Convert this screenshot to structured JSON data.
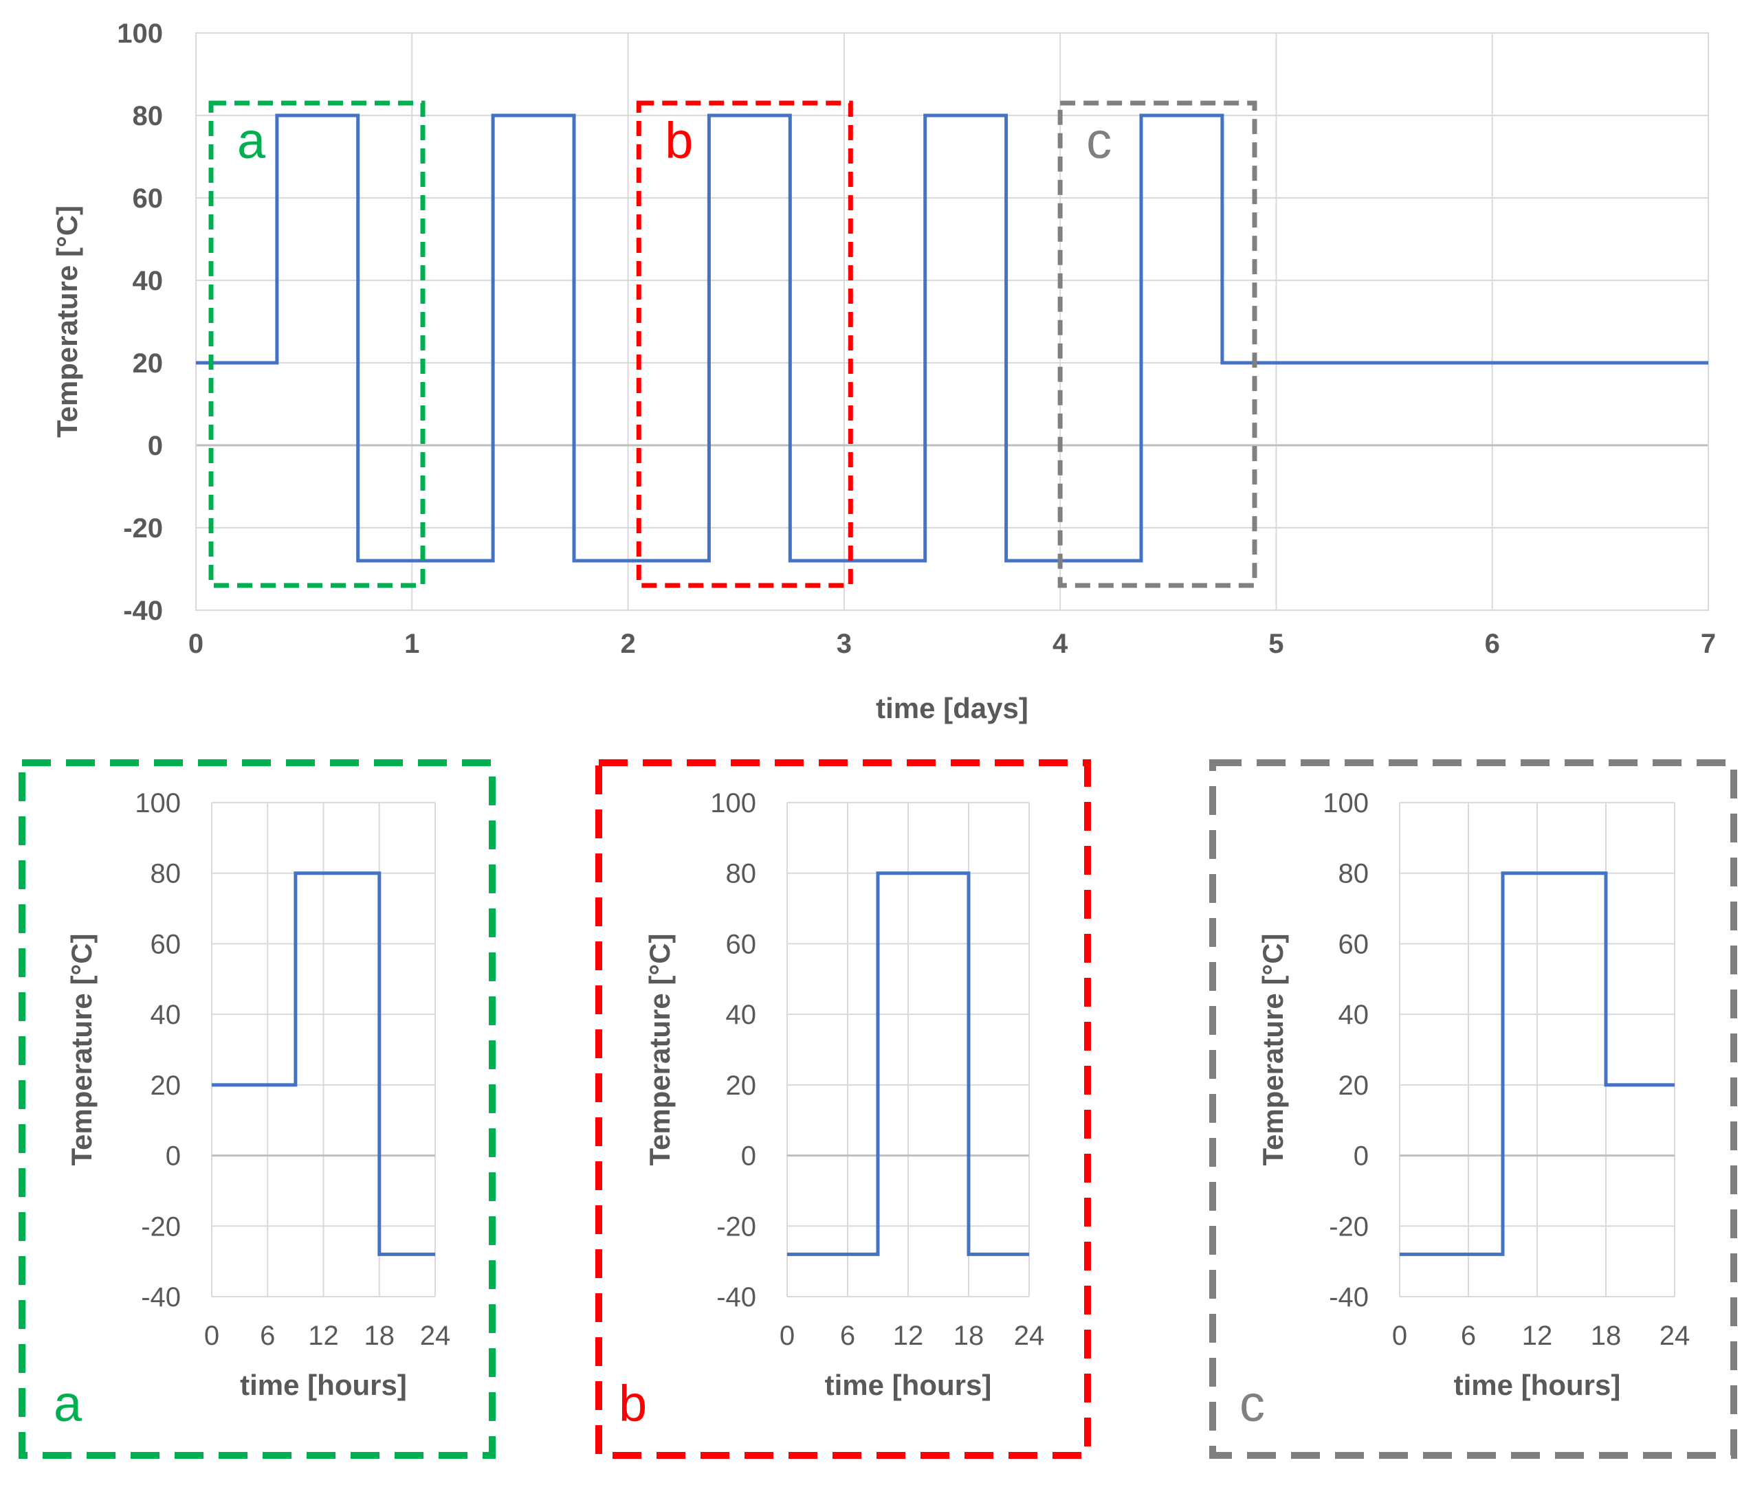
{
  "chart_data": [
    {
      "id": "main",
      "type": "line",
      "title": "",
      "xlabel": "time [days]",
      "ylabel": "Temperature [°C]",
      "xlim": [
        0,
        7
      ],
      "ylim": [
        -40,
        100
      ],
      "xticks": [
        0,
        1,
        2,
        3,
        4,
        5,
        6,
        7
      ],
      "yticks": [
        -40,
        -20,
        0,
        20,
        40,
        60,
        80,
        100
      ],
      "grid": true,
      "step": true,
      "series": [
        {
          "color": "#4472C4",
          "x": [
            0,
            0.375,
            0.375,
            0.75,
            0.75,
            1.375,
            1.375,
            1.75,
            1.75,
            2.375,
            2.375,
            2.75,
            2.75,
            3.375,
            3.375,
            3.75,
            3.75,
            4.375,
            4.375,
            4.75,
            4.75,
            7
          ],
          "y": [
            20,
            20,
            80,
            80,
            -28,
            -28,
            80,
            80,
            -28,
            -28,
            80,
            80,
            -28,
            -28,
            80,
            80,
            -28,
            -28,
            80,
            80,
            20,
            20
          ]
        }
      ],
      "highlights": [
        {
          "label": "a",
          "color": "#00B050",
          "x": [
            0.07,
            1.05
          ],
          "y": [
            -34,
            83
          ]
        },
        {
          "label": "b",
          "color": "#FF0000",
          "x": [
            2.05,
            3.03
          ],
          "y": [
            -34,
            83
          ]
        },
        {
          "label": "c",
          "color": "#808080",
          "x": [
            4.0,
            4.9
          ],
          "y": [
            -34,
            83
          ]
        }
      ]
    },
    {
      "id": "a",
      "type": "line",
      "panel_label": "a",
      "frame_color": "#00B050",
      "xlabel": "time [hours]",
      "ylabel": "Temperature [°C]",
      "xlim": [
        0,
        24
      ],
      "ylim": [
        -40,
        100
      ],
      "xticks": [
        0,
        6,
        12,
        18,
        24
      ],
      "yticks": [
        -40,
        -20,
        0,
        20,
        40,
        60,
        80,
        100
      ],
      "grid": true,
      "series": [
        {
          "color": "#4472C4",
          "x": [
            0,
            9,
            9,
            18,
            18,
            24
          ],
          "y": [
            20,
            20,
            80,
            80,
            -28,
            -28
          ]
        }
      ]
    },
    {
      "id": "b",
      "type": "line",
      "panel_label": "b",
      "frame_color": "#FF0000",
      "xlabel": "time [hours]",
      "ylabel": "Temperature [°C]",
      "xlim": [
        0,
        24
      ],
      "ylim": [
        -40,
        100
      ],
      "xticks": [
        0,
        6,
        12,
        18,
        24
      ],
      "yticks": [
        -40,
        -20,
        0,
        20,
        40,
        60,
        80,
        100
      ],
      "grid": true,
      "series": [
        {
          "color": "#4472C4",
          "x": [
            0,
            9,
            9,
            18,
            18,
            24
          ],
          "y": [
            -28,
            -28,
            80,
            80,
            -28,
            -28
          ]
        }
      ]
    },
    {
      "id": "c",
      "type": "line",
      "panel_label": "c",
      "frame_color": "#808080",
      "xlabel": "time [hours]",
      "ylabel": "Temperature [°C]",
      "xlim": [
        0,
        24
      ],
      "ylim": [
        -40,
        100
      ],
      "xticks": [
        0,
        6,
        12,
        18,
        24
      ],
      "yticks": [
        -40,
        -20,
        0,
        20,
        40,
        60,
        80,
        100
      ],
      "grid": true,
      "series": [
        {
          "color": "#4472C4",
          "x": [
            0,
            9,
            9,
            18,
            18,
            24
          ],
          "y": [
            -28,
            -28,
            80,
            80,
            20,
            20
          ]
        }
      ]
    }
  ]
}
